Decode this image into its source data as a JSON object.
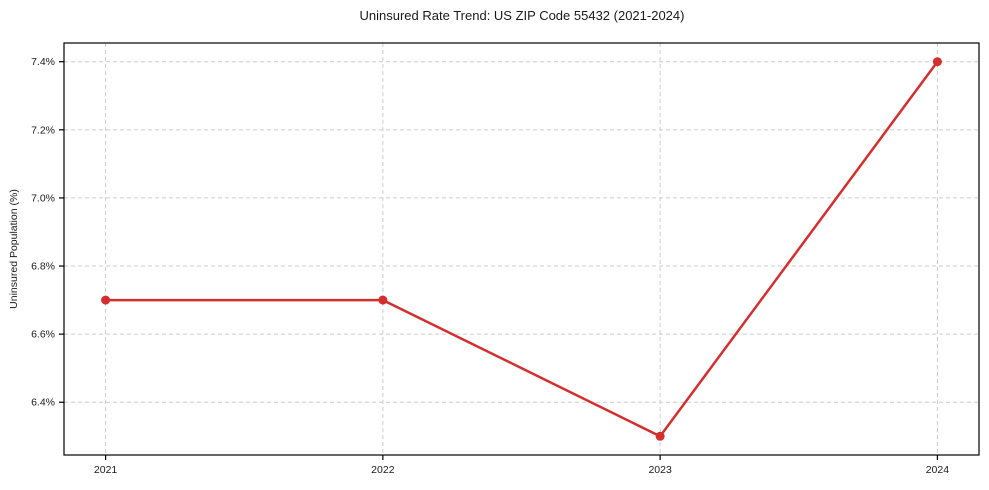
{
  "chart_data": {
    "type": "line",
    "title": "Uninsured Rate Trend: US ZIP Code 55432 (2021-2024)",
    "xlabel": "",
    "ylabel": "Uninsured Population (%)",
    "x": [
      2021,
      2022,
      2023,
      2024
    ],
    "values": [
      6.7,
      6.7,
      6.3,
      7.4
    ],
    "xtick_values": [
      2021,
      2022,
      2023,
      2024
    ],
    "xtick_labels": [
      "2021",
      "2022",
      "2023",
      "2024"
    ],
    "ytick_values": [
      6.4,
      6.6,
      6.8,
      7.0,
      7.2,
      7.4
    ],
    "ytick_labels": [
      "6.4%",
      "6.6%",
      "6.8%",
      "7.0%",
      "7.2%",
      "7.4%"
    ],
    "xlim": [
      2020.85,
      2024.15
    ],
    "ylim": [
      6.245,
      7.455
    ],
    "grid": true,
    "legend": false,
    "marker": "circle",
    "line_color": "#d32f2f",
    "grid_color": "#cccccc",
    "axis_color": "#000000",
    "text_color": "#1a1a1a",
    "background_color": "#ffffff"
  }
}
